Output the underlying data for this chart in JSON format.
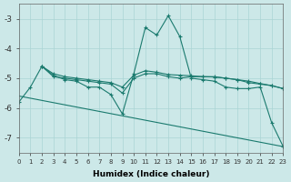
{
  "xlabel": "Humidex (Indice chaleur)",
  "background_color": "#cce8e8",
  "grid_color": "#aad4d4",
  "line_color": "#1a7a6e",
  "xlim": [
    0,
    23
  ],
  "ylim": [
    -7.5,
    -2.5
  ],
  "yticks": [
    -7,
    -6,
    -5,
    -4,
    -3
  ],
  "xticks": [
    0,
    1,
    2,
    3,
    4,
    5,
    6,
    7,
    8,
    9,
    10,
    11,
    12,
    13,
    14,
    15,
    16,
    17,
    18,
    19,
    20,
    21,
    22,
    23
  ],
  "series": [
    {
      "x": [
        0,
        1,
        2,
        3,
        4,
        5,
        6,
        7,
        8,
        9,
        10,
        11,
        12,
        13,
        14,
        15,
        16,
        17,
        18,
        19,
        20,
        21,
        22,
        23
      ],
      "y": [
        -5.8,
        -5.3,
        -4.6,
        -4.9,
        -5.05,
        -5.1,
        -5.3,
        -5.3,
        -5.55,
        -6.2,
        -4.85,
        -3.3,
        -3.55,
        -2.9,
        -3.6,
        -5.0,
        -5.05,
        -5.1,
        -5.3,
        -5.35,
        -5.35,
        -5.3,
        -6.5,
        -7.3
      ],
      "has_marker": true
    },
    {
      "x": [
        2,
        3,
        4,
        5,
        6,
        7,
        8,
        9,
        10,
        11,
        12,
        13,
        14,
        15,
        16,
        17,
        18,
        19,
        20,
        21,
        22,
        23
      ],
      "y": [
        -4.6,
        -4.95,
        -5.0,
        -5.05,
        -5.1,
        -5.15,
        -5.2,
        -5.5,
        -5.0,
        -4.85,
        -4.85,
        -4.95,
        -5.0,
        -4.95,
        -4.95,
        -4.95,
        -5.0,
        -5.05,
        -5.15,
        -5.2,
        -5.25,
        -5.35
      ],
      "has_marker": true
    },
    {
      "x": [
        2,
        3,
        4,
        5,
        6,
        7,
        8,
        9,
        10,
        11,
        12,
        13,
        14,
        15,
        16,
        17,
        18,
        19,
        20,
        21,
        22,
        23
      ],
      "y": [
        -4.6,
        -4.85,
        -4.95,
        -5.0,
        -5.05,
        -5.1,
        -5.15,
        -5.3,
        -4.9,
        -4.75,
        -4.8,
        -4.88,
        -4.9,
        -4.92,
        -4.95,
        -4.96,
        -5.0,
        -5.05,
        -5.1,
        -5.18,
        -5.25,
        -5.35
      ],
      "has_marker": true
    },
    {
      "x": [
        0,
        23
      ],
      "y": [
        -5.6,
        -7.3
      ],
      "has_marker": false
    }
  ]
}
